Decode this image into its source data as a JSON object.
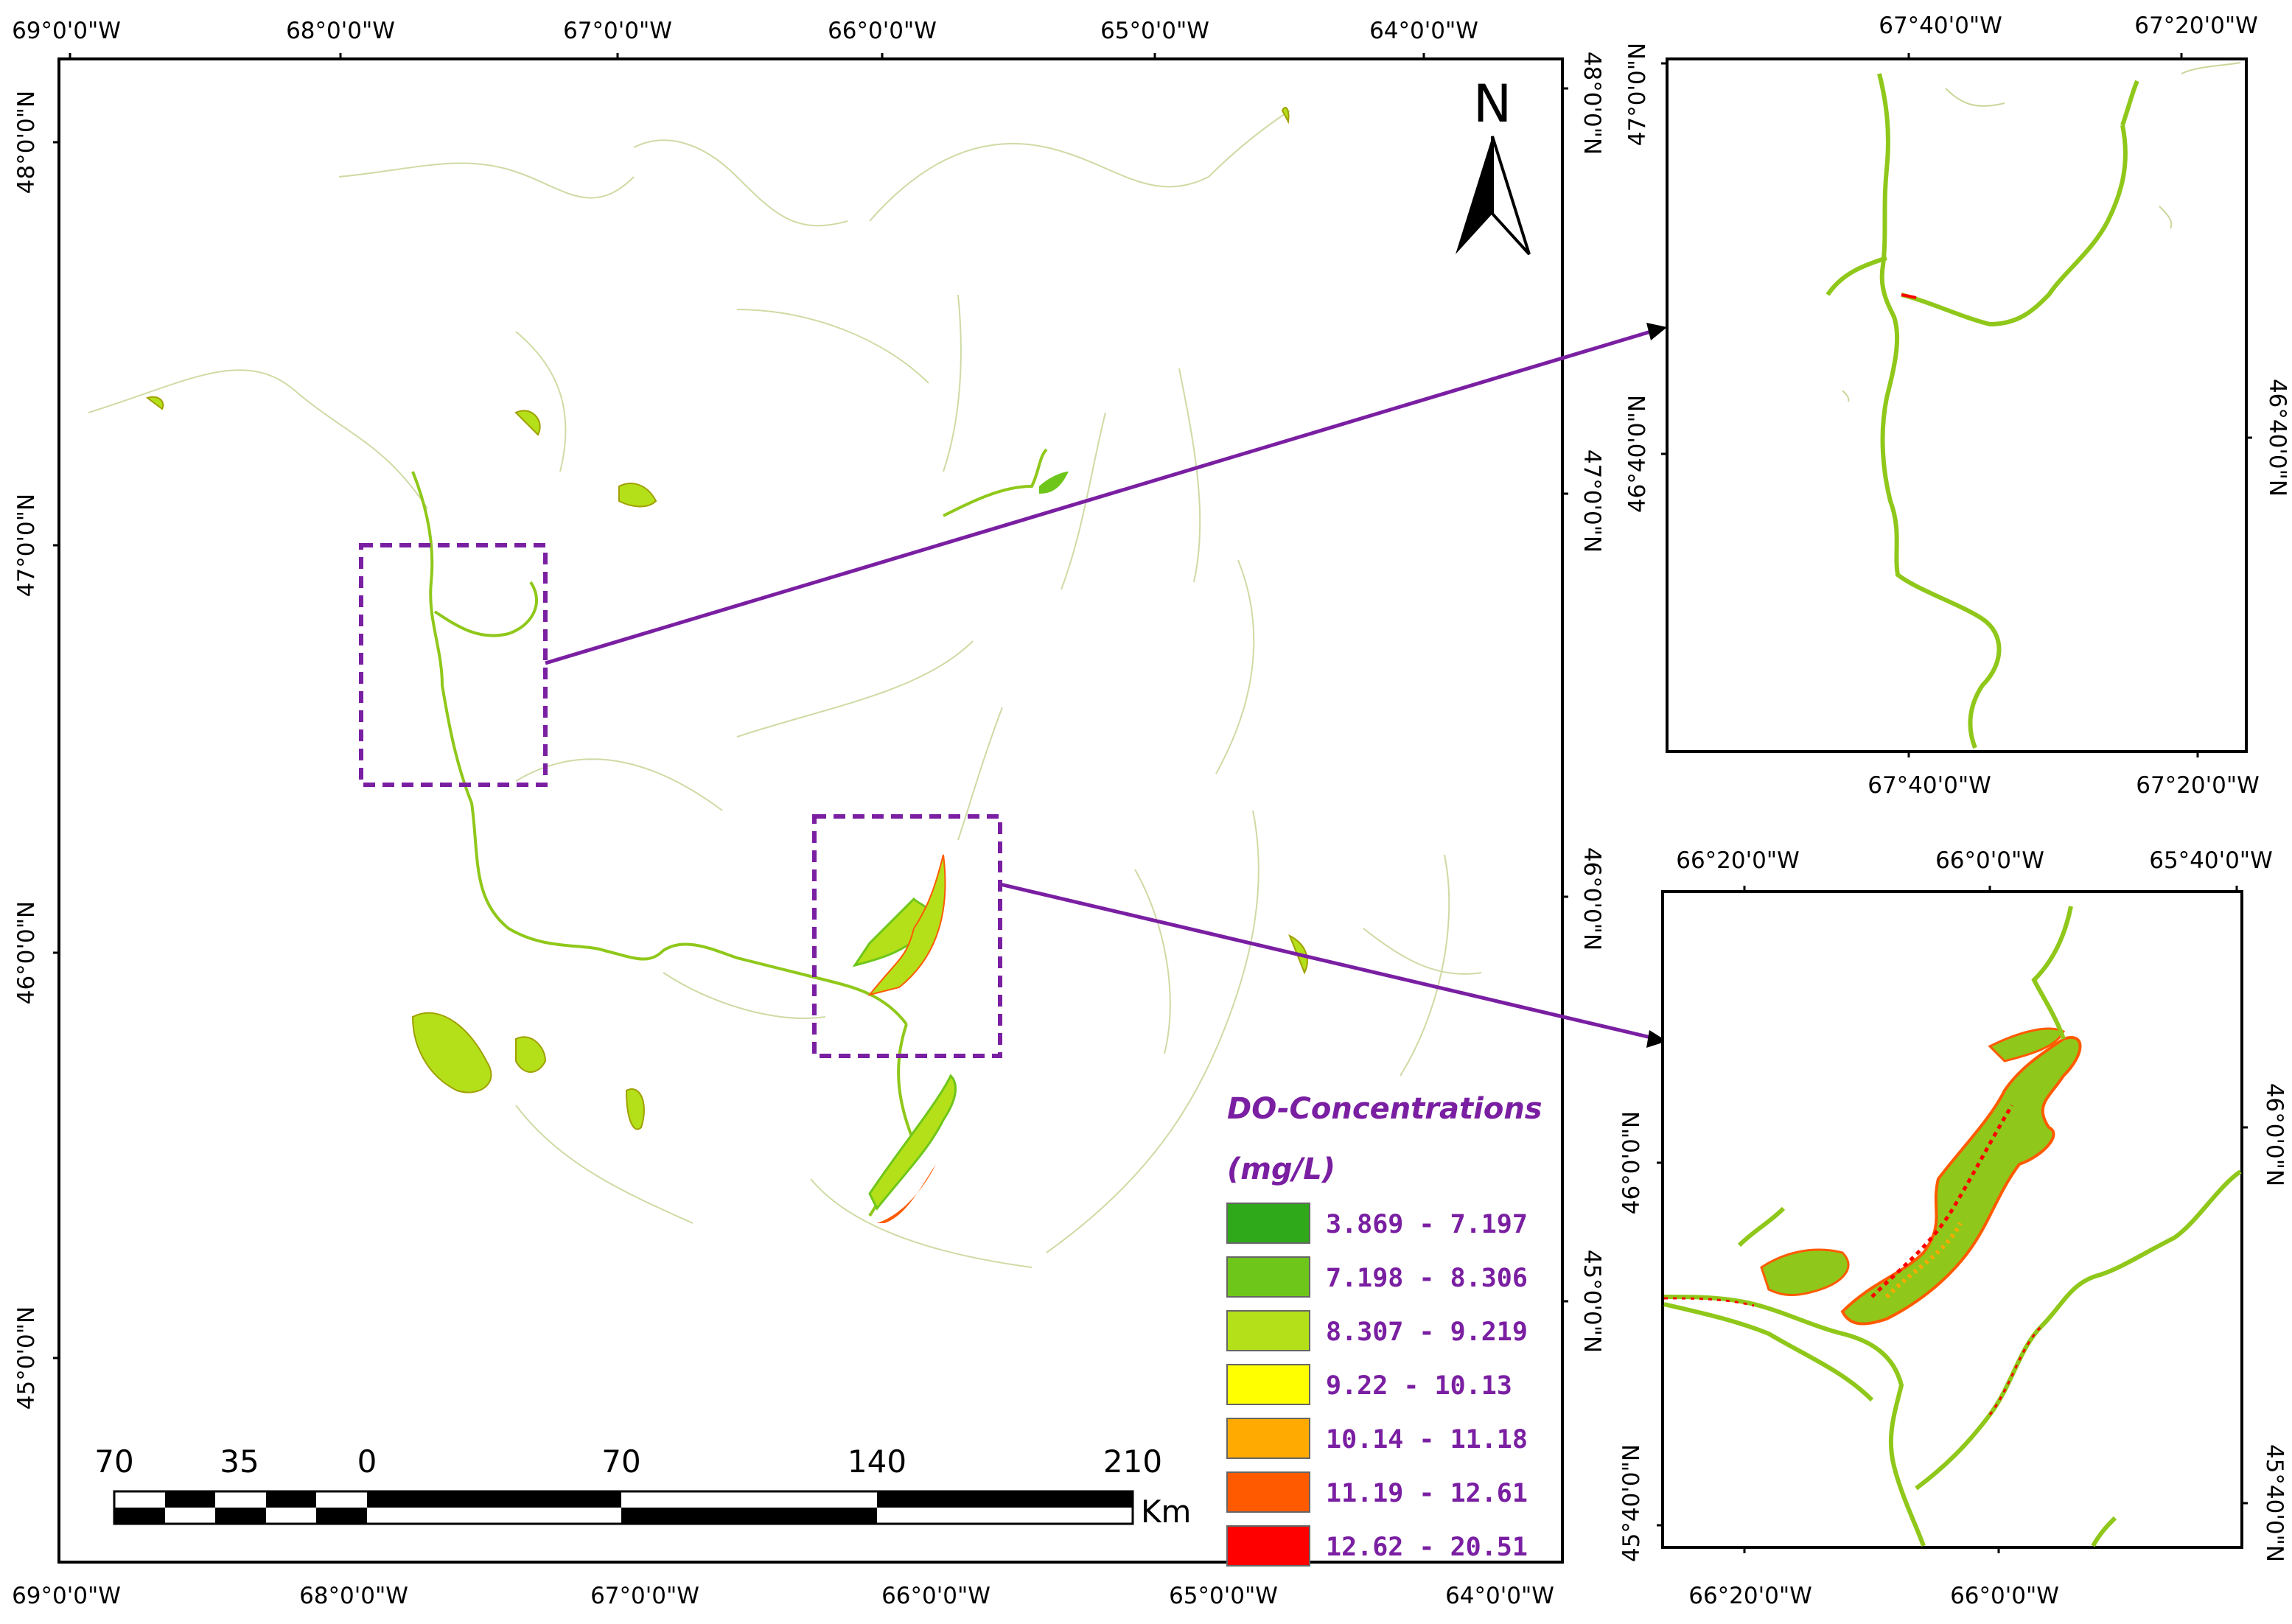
{
  "main_map": {
    "top_lon_labels": [
      "69°0'0\"W",
      "68°0'0\"W",
      "67°0'0\"W",
      "66°0'0\"W",
      "65°0'0\"W",
      "64°0'0\"W"
    ],
    "bottom_lon_labels": [
      "69°0'0\"W",
      "68°0'0\"W",
      "67°0'0\"W",
      "66°0'0\"W",
      "65°0'0\"W",
      "64°0'0\"W"
    ],
    "left_lat_labels": [
      "48°0'0\"N",
      "47°0'0\"N",
      "46°0'0\"N",
      "45°0'0\"N"
    ],
    "right_lat_labels": [
      "48°0'0\"N",
      "47°0'0\"N",
      "46°0'0\"N",
      "45°0'0\"N"
    ]
  },
  "north_arrow": {
    "label": "N"
  },
  "scale_bar": {
    "ticks": [
      "70",
      "35",
      "0",
      "70",
      "140",
      "210"
    ],
    "unit": "Km"
  },
  "legend": {
    "title_line1": "DO-Concentrations",
    "title_line2": "(mg/L)",
    "text_color": "#7a1fa2",
    "classes": [
      {
        "label": "3.869 - 7.197",
        "color": "#2fa81a"
      },
      {
        "label": "7.198 - 8.306",
        "color": "#6ec61a"
      },
      {
        "label": "8.307 - 9.219",
        "color": "#b4e01a"
      },
      {
        "label": "9.22 - 10.13",
        "color": "#ffff00"
      },
      {
        "label": "10.14 - 11.18",
        "color": "#ffaa00"
      },
      {
        "label": "11.19 - 12.61",
        "color": "#ff5a00"
      },
      {
        "label": "12.62 - 20.51",
        "color": "#ff0000"
      }
    ]
  },
  "inset_top": {
    "top_lon_labels": [
      "67°40'0\"W",
      "67°20'0\"W"
    ],
    "bottom_lon_labels": [
      "67°40'0\"W",
      "67°20'0\"W"
    ],
    "left_lat_labels": [
      "47°0'0\"N",
      "46°40'0\"N"
    ],
    "right_lat_labels": [
      "46°40'0\"N"
    ]
  },
  "inset_bottom": {
    "top_lon_labels": [
      "66°20'0\"W",
      "66°0'0\"W",
      "65°40'0\"W"
    ],
    "bottom_lon_labels": [
      "66°20'0\"W",
      "66°0'0\"W"
    ],
    "left_lat_labels": [
      "46°0'0\"N",
      "45°40'0\"N"
    ],
    "right_lat_labels": [
      "46°0'0\"N",
      "45°40'0\"N"
    ]
  },
  "callout_color": "#7a1fa2"
}
